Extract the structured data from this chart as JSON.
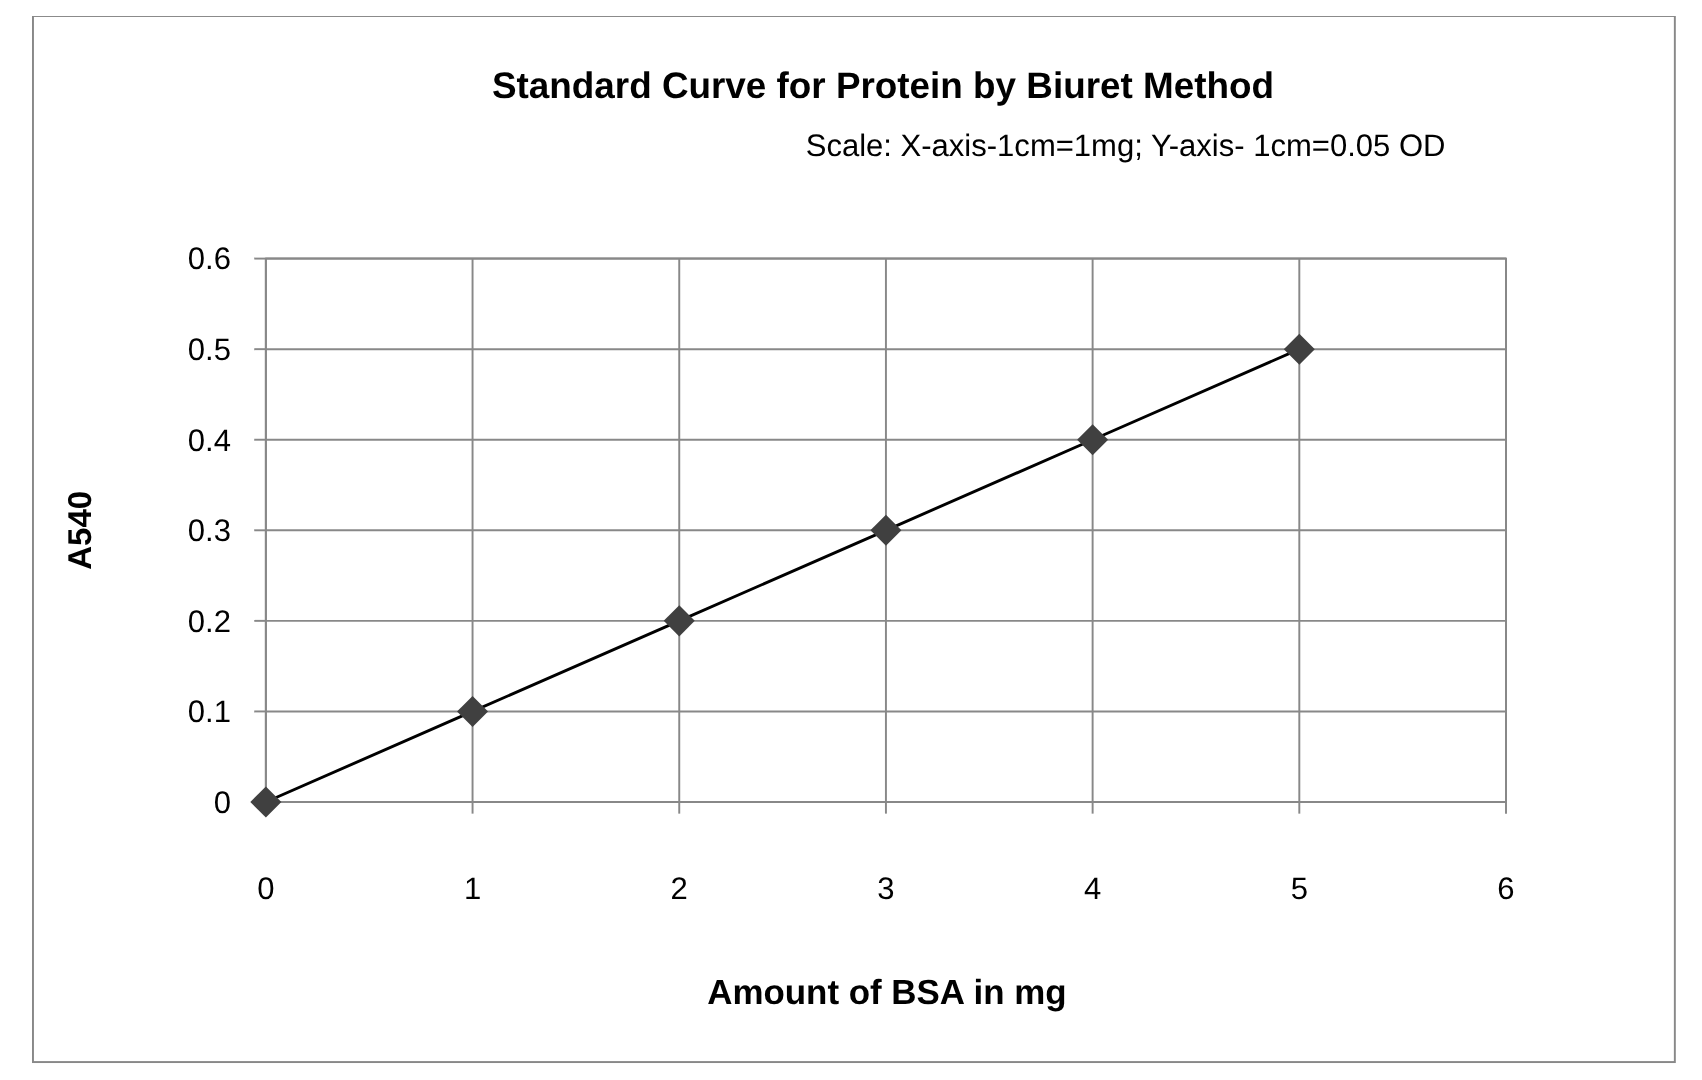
{
  "chart_data": {
    "type": "line",
    "title": "Standard Curve  for Protein by Biuret Method",
    "subtitle": "Scale: X-axis-1cm=1mg; Y-axis- 1cm=0.05 OD",
    "xlabel": "Amount of BSA in mg",
    "ylabel": "A540",
    "x": [
      0,
      1,
      2,
      3,
      4,
      5
    ],
    "series": [
      {
        "color": "#404040",
        "values": [
          0,
          0.1,
          0.2,
          0.3,
          0.4,
          0.5
        ]
      }
    ],
    "xlim": [
      0,
      6
    ],
    "xticks": [
      0,
      1,
      2,
      3,
      4,
      5,
      6
    ],
    "ylim": [
      0,
      0.6
    ],
    "yticks": [
      0,
      0.1,
      0.2,
      0.3,
      0.4,
      0.5,
      0.6
    ],
    "grid": true,
    "marker": "diamond",
    "line_style": "solid"
  }
}
